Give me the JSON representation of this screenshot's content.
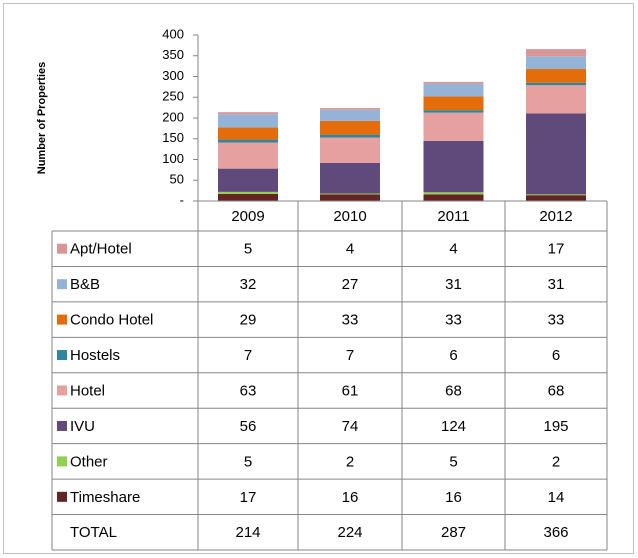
{
  "chart_data": {
    "type": "stacked_bar",
    "y_label": "Number of Properties",
    "categories": [
      "2009",
      "2010",
      "2011",
      "2012"
    ],
    "ylim": [
      0,
      400
    ],
    "yticks": [
      {
        "value": 0,
        "label": "-"
      },
      50,
      100,
      150,
      200,
      250,
      300,
      350,
      400
    ],
    "series": [
      {
        "name": "Apt/Hotel",
        "color": "#d99694",
        "values": [
          5,
          4,
          4,
          17
        ]
      },
      {
        "name": "B&B",
        "color": "#95b3d7",
        "values": [
          32,
          27,
          31,
          31
        ]
      },
      {
        "name": "Condo Hotel",
        "color": "#e46c0a",
        "values": [
          29,
          33,
          33,
          33
        ]
      },
      {
        "name": "Hostels",
        "color": "#31859c",
        "values": [
          7,
          7,
          6,
          6
        ]
      },
      {
        "name": "Hotel",
        "color": "#e6a0a0",
        "values": [
          63,
          61,
          68,
          68
        ]
      },
      {
        "name": "IVU",
        "color": "#604a7b",
        "values": [
          56,
          74,
          124,
          195
        ]
      },
      {
        "name": "Other",
        "color": "#92d050",
        "values": [
          5,
          2,
          5,
          2
        ]
      },
      {
        "name": "Timeshare",
        "color": "#632523",
        "values": [
          17,
          16,
          16,
          14
        ]
      }
    ],
    "total_label": "TOTAL",
    "totals": [
      214,
      224,
      287,
      366
    ]
  }
}
